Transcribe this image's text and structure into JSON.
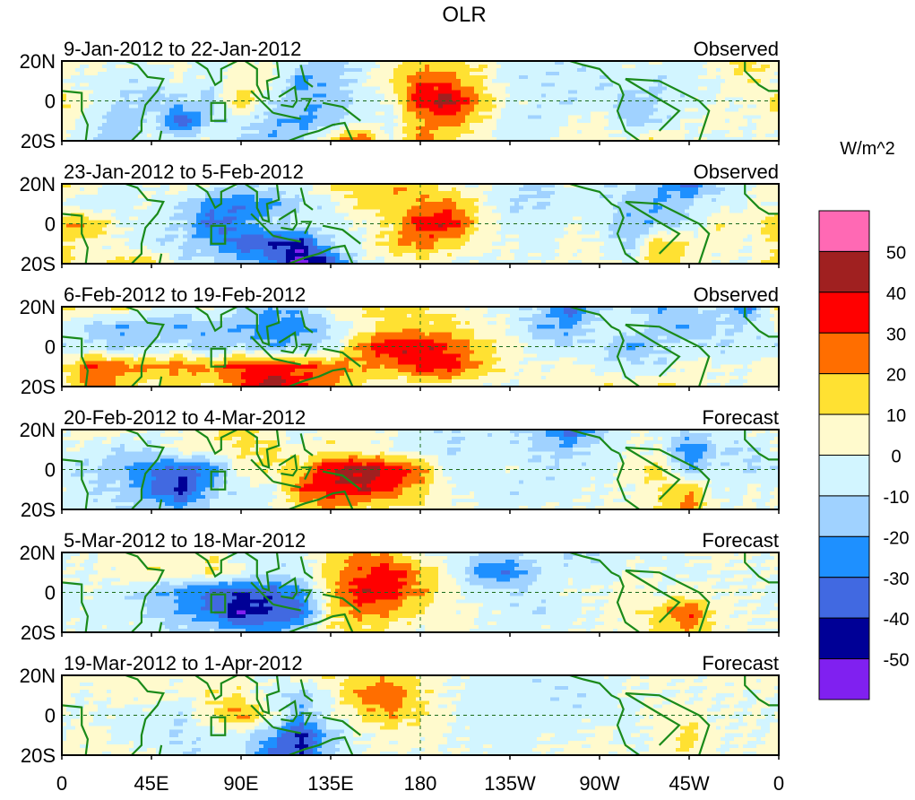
{
  "chart_data": {
    "type": "heatmap",
    "title": "OLR",
    "units_label": "W/m^2",
    "x_ticks": [
      "0",
      "45E",
      "90E",
      "135E",
      "180",
      "135W",
      "90W",
      "45W",
      "0"
    ],
    "y_ticks": [
      "20N",
      "0",
      "20S"
    ],
    "grid_lon_deg": [
      0,
      15,
      30,
      45,
      60,
      75,
      90,
      105,
      120,
      135,
      150,
      165,
      180,
      195,
      210,
      225,
      240,
      255,
      270,
      285,
      300,
      315,
      330,
      345
    ],
    "grid_lat_deg": [
      20,
      10,
      0,
      -10,
      -20
    ],
    "colorbar": {
      "levels": [
        -50,
        -40,
        -30,
        -20,
        -10,
        0,
        10,
        20,
        30,
        40,
        50
      ],
      "tick_labels": [
        "50",
        "40",
        "30",
        "20",
        "10",
        "0",
        "-10",
        "-20",
        "-30",
        "-40",
        "-50"
      ],
      "colors": [
        "#8020f0",
        "#000096",
        "#4169e1",
        "#1e90ff",
        "#a0d2ff",
        "#d2f5ff",
        "#fffacd",
        "#ffe132",
        "#ff6e00",
        "#ff0000",
        "#a02020",
        "#ff69b4"
      ]
    },
    "panels": [
      {
        "period": "9-Jan-2012 to 22-Jan-2012",
        "kind": "Observed",
        "values": [
          [
            5,
            5,
            0,
            0,
            5,
            -5,
            5,
            0,
            -5,
            -15,
            -10,
            5,
            15,
            10,
            10,
            -5,
            -5,
            -10,
            -5,
            0,
            0,
            -5,
            5,
            15
          ],
          [
            0,
            -5,
            -5,
            -10,
            0,
            -5,
            5,
            5,
            -25,
            -15,
            -5,
            10,
            30,
            25,
            10,
            -5,
            -10,
            -5,
            -10,
            -5,
            -10,
            -5,
            0,
            10
          ],
          [
            15,
            0,
            -10,
            -15,
            -10,
            -15,
            20,
            -10,
            -15,
            -20,
            -5,
            0,
            40,
            45,
            20,
            0,
            -5,
            -10,
            -5,
            -15,
            -10,
            -5,
            0,
            0
          ],
          [
            5,
            -5,
            -20,
            -5,
            -40,
            -10,
            -5,
            -15,
            -25,
            -15,
            0,
            -5,
            20,
            25,
            10,
            -5,
            -10,
            0,
            5,
            -15,
            -10,
            0,
            5,
            0
          ],
          [
            0,
            -10,
            -15,
            0,
            -5,
            0,
            -10,
            -20,
            -10,
            15,
            30,
            0,
            25,
            10,
            5,
            -5,
            0,
            5,
            5,
            0,
            15,
            0,
            -5,
            0
          ]
        ]
      },
      {
        "period": "23-Jan-2012 to 5-Feb-2012",
        "kind": "Observed",
        "values": [
          [
            10,
            5,
            -5,
            0,
            5,
            0,
            -10,
            -5,
            -5,
            15,
            15,
            20,
            15,
            5,
            0,
            -5,
            -15,
            0,
            -10,
            -5,
            -20,
            -35,
            -10,
            0
          ],
          [
            0,
            -10,
            -5,
            0,
            -10,
            -25,
            -30,
            -25,
            -10,
            -5,
            15,
            15,
            20,
            25,
            5,
            -10,
            -10,
            -5,
            -5,
            -15,
            -20,
            -10,
            -5,
            0
          ],
          [
            20,
            20,
            0,
            -5,
            -10,
            -35,
            -25,
            -10,
            -5,
            -5,
            0,
            10,
            35,
            40,
            10,
            -5,
            -5,
            0,
            -5,
            -20,
            -15,
            -10,
            10,
            5
          ],
          [
            10,
            5,
            0,
            -10,
            -10,
            -20,
            -35,
            -40,
            -45,
            -10,
            0,
            15,
            25,
            15,
            5,
            0,
            -5,
            5,
            0,
            -15,
            20,
            10,
            5,
            0
          ],
          [
            20,
            0,
            15,
            20,
            -10,
            -5,
            -15,
            -25,
            -55,
            -40,
            -5,
            0,
            5,
            0,
            -5,
            0,
            0,
            0,
            5,
            -5,
            20,
            5,
            0,
            0
          ]
        ]
      },
      {
        "period": "6-Feb-2012 to 19-Feb-2012",
        "kind": "Observed",
        "values": [
          [
            15,
            10,
            15,
            0,
            -5,
            5,
            -10,
            -20,
            -15,
            5,
            10,
            15,
            10,
            5,
            0,
            -5,
            -10,
            -40,
            -10,
            -10,
            -20,
            -10,
            -10,
            -30
          ],
          [
            0,
            -15,
            -20,
            -15,
            -20,
            -15,
            -20,
            -25,
            -25,
            -10,
            5,
            15,
            15,
            15,
            5,
            0,
            -20,
            -20,
            -5,
            0,
            -15,
            -20,
            -10,
            -10
          ],
          [
            -10,
            -5,
            -15,
            -10,
            -5,
            -20,
            -10,
            -20,
            -15,
            -10,
            25,
            40,
            40,
            30,
            15,
            5,
            -5,
            -10,
            -5,
            -25,
            -10,
            -5,
            -10,
            -5
          ],
          [
            10,
            30,
            25,
            20,
            25,
            20,
            35,
            35,
            30,
            25,
            20,
            20,
            35,
            35,
            20,
            5,
            0,
            5,
            -5,
            -5,
            -10,
            5,
            0,
            0
          ],
          [
            5,
            25,
            15,
            5,
            10,
            10,
            25,
            50,
            30,
            20,
            10,
            0,
            5,
            5,
            0,
            0,
            5,
            5,
            10,
            5,
            15,
            5,
            0,
            0
          ]
        ]
      },
      {
        "period": "20-Feb-2012 to 4-Mar-2012",
        "kind": "Forecast",
        "values": [
          [
            0,
            10,
            5,
            0,
            0,
            10,
            15,
            0,
            -5,
            5,
            5,
            0,
            -5,
            -10,
            -5,
            -10,
            -15,
            -40,
            -15,
            0,
            0,
            -10,
            0,
            0
          ],
          [
            0,
            -5,
            -10,
            -10,
            5,
            5,
            10,
            15,
            0,
            10,
            5,
            0,
            -5,
            -10,
            -5,
            -5,
            -10,
            -15,
            -5,
            0,
            0,
            -30,
            -10,
            -10
          ],
          [
            -10,
            -10,
            -20,
            -30,
            -35,
            -30,
            5,
            10,
            15,
            40,
            45,
            40,
            25,
            -5,
            -5,
            0,
            -10,
            -5,
            -5,
            5,
            15,
            -20,
            -5,
            -10
          ],
          [
            0,
            -10,
            -10,
            -30,
            -45,
            -15,
            -5,
            -5,
            30,
            35,
            40,
            30,
            15,
            0,
            -5,
            -10,
            -5,
            -5,
            0,
            0,
            10,
            20,
            -5,
            0
          ],
          [
            0,
            -5,
            -10,
            -10,
            -20,
            -5,
            -5,
            0,
            10,
            20,
            10,
            5,
            10,
            5,
            0,
            -5,
            0,
            0,
            0,
            5,
            10,
            25,
            0,
            0
          ]
        ]
      },
      {
        "period": "5-Mar-2012 to 18-Mar-2012",
        "kind": "Forecast",
        "values": [
          [
            0,
            0,
            5,
            5,
            5,
            10,
            -5,
            -5,
            -5,
            10,
            25,
            15,
            0,
            -5,
            -10,
            -15,
            0,
            -10,
            -10,
            0,
            -5,
            0,
            5,
            0
          ],
          [
            0,
            0,
            5,
            10,
            5,
            10,
            0,
            -10,
            -5,
            15,
            30,
            35,
            20,
            0,
            -25,
            -30,
            -10,
            -5,
            -5,
            0,
            0,
            -5,
            0,
            0
          ],
          [
            -5,
            0,
            -5,
            -15,
            -25,
            -35,
            -40,
            -35,
            -25,
            15,
            40,
            35,
            20,
            5,
            -5,
            -10,
            -5,
            0,
            0,
            5,
            0,
            5,
            0,
            0
          ],
          [
            0,
            -5,
            -5,
            -10,
            -20,
            -30,
            -50,
            -40,
            -35,
            10,
            25,
            20,
            10,
            5,
            0,
            -5,
            -10,
            -5,
            0,
            5,
            15,
            30,
            5,
            0
          ],
          [
            0,
            -5,
            0,
            -5,
            -10,
            -10,
            -15,
            -20,
            -10,
            10,
            10,
            5,
            0,
            5,
            0,
            -5,
            0,
            0,
            0,
            5,
            10,
            20,
            5,
            0
          ]
        ]
      },
      {
        "period": "19-Mar-2012 to 1-Apr-2012",
        "kind": "Forecast",
        "values": [
          [
            5,
            5,
            5,
            5,
            0,
            5,
            0,
            0,
            5,
            10,
            15,
            15,
            10,
            0,
            -5,
            -5,
            -10,
            -5,
            -5,
            0,
            5,
            0,
            5,
            5
          ],
          [
            0,
            0,
            5,
            5,
            0,
            10,
            10,
            -5,
            -15,
            0,
            25,
            30,
            10,
            0,
            -5,
            -5,
            -5,
            -10,
            -5,
            0,
            0,
            0,
            0,
            0
          ],
          [
            0,
            0,
            -5,
            -5,
            -10,
            10,
            25,
            5,
            -20,
            0,
            10,
            20,
            10,
            0,
            -5,
            -5,
            -5,
            -5,
            -5,
            -5,
            5,
            5,
            0,
            0
          ],
          [
            0,
            5,
            -5,
            -5,
            -10,
            -5,
            -5,
            -20,
            -45,
            -15,
            0,
            5,
            5,
            0,
            -5,
            -5,
            0,
            -5,
            5,
            -5,
            5,
            15,
            0,
            0
          ],
          [
            5,
            0,
            5,
            0,
            -10,
            -5,
            -5,
            -35,
            -40,
            -10,
            0,
            0,
            0,
            0,
            0,
            -5,
            0,
            5,
            5,
            0,
            0,
            10,
            0,
            0
          ]
        ]
      }
    ]
  }
}
